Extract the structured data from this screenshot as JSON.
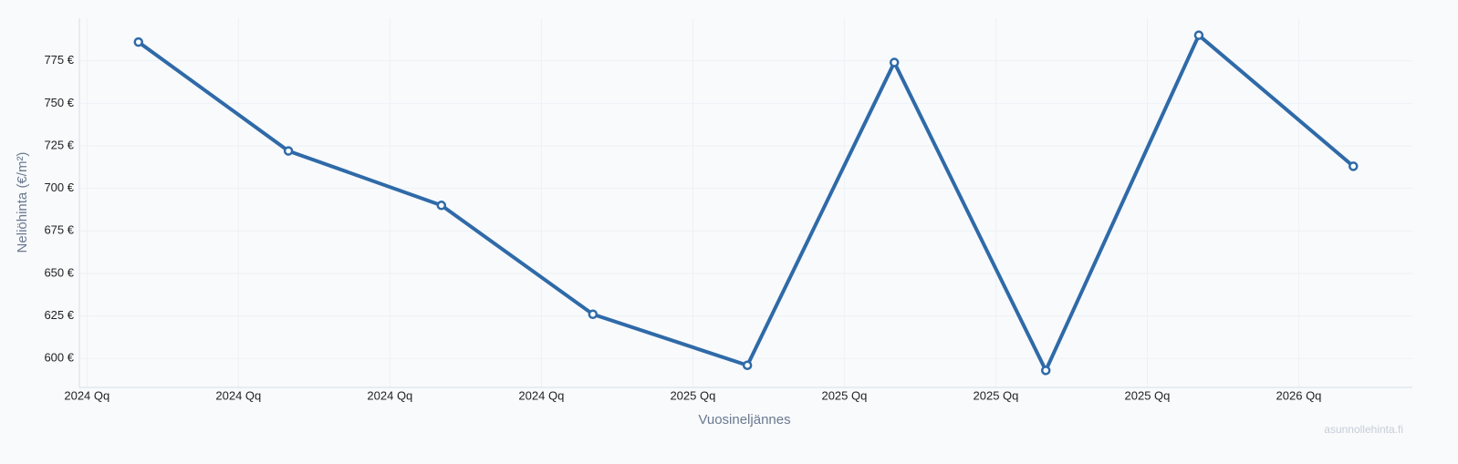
{
  "chart_data": {
    "type": "line",
    "x_label": "Vuosineljännes",
    "y_label": "Neliöhinta (€/m²)",
    "watermark": "asunnollehinta.fi",
    "x": [
      0.34,
      1.33,
      2.34,
      3.34,
      4.36,
      5.33,
      6.33,
      7.34,
      8.36
    ],
    "series": [
      {
        "name": "Neliöhinta",
        "color": "#2f6aa8",
        "values": [
          786,
          722,
          690,
          626,
          596,
          774,
          593,
          790,
          713
        ]
      }
    ],
    "xlim": [
      -0.05,
      8.75
    ],
    "xticks": [
      {
        "value": 0,
        "label": "2024 Qq"
      },
      {
        "value": 1,
        "label": "2024 Qq"
      },
      {
        "value": 2,
        "label": "2024 Qq"
      },
      {
        "value": 3,
        "label": "2024 Qq"
      },
      {
        "value": 4,
        "label": "2025 Qq"
      },
      {
        "value": 5,
        "label": "2025 Qq"
      },
      {
        "value": 6,
        "label": "2025 Qq"
      },
      {
        "value": 7,
        "label": "2025 Qq"
      },
      {
        "value": 8,
        "label": "2026 Qq"
      }
    ],
    "ylim": [
      583,
      800
    ],
    "yticks": [
      {
        "value": 600,
        "label": "600 €"
      },
      {
        "value": 625,
        "label": "625 €"
      },
      {
        "value": 650,
        "label": "650 €"
      },
      {
        "value": 675,
        "label": "675 €"
      },
      {
        "value": 700,
        "label": "700 €"
      },
      {
        "value": 725,
        "label": "725 €"
      },
      {
        "value": 750,
        "label": "750 €"
      },
      {
        "value": 775,
        "label": "775 €"
      }
    ],
    "grid": true
  }
}
